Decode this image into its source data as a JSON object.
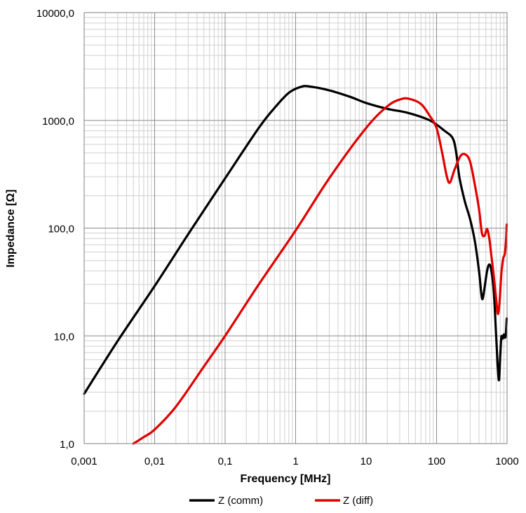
{
  "chart_data": {
    "type": "line",
    "xscale": "log",
    "yscale": "log",
    "xlabel": "Frequency  [MHz]",
    "ylabel": "Impedance [Ω]",
    "xlim": [
      0.001,
      1000
    ],
    "ylim": [
      1,
      10000
    ],
    "x_tick_labels": [
      "0,001",
      "0,01",
      "0,1",
      "1",
      "10",
      "100",
      "1000"
    ],
    "y_tick_labels": [
      "1,0",
      "10,0",
      "100,0",
      "1000,0",
      "10000,0"
    ],
    "grid": true,
    "legend_position": "bottom",
    "series": [
      {
        "name": "Z  (comm)",
        "color": "#000000",
        "points": [
          [
            0.001,
            2.9
          ],
          [
            0.003,
            9
          ],
          [
            0.01,
            29
          ],
          [
            0.03,
            88
          ],
          [
            0.1,
            290
          ],
          [
            0.3,
            850
          ],
          [
            0.5,
            1300
          ],
          [
            0.8,
            1800
          ],
          [
            1.2,
            2050
          ],
          [
            1.6,
            2060
          ],
          [
            3,
            1900
          ],
          [
            6,
            1650
          ],
          [
            10,
            1450
          ],
          [
            20,
            1280
          ],
          [
            40,
            1170
          ],
          [
            80,
            1000
          ],
          [
            130,
            800
          ],
          [
            170,
            680
          ],
          [
            190,
            500
          ],
          [
            210,
            300
          ],
          [
            250,
            180
          ],
          [
            300,
            120
          ],
          [
            350,
            75
          ],
          [
            400,
            40
          ],
          [
            430,
            25
          ],
          [
            450,
            22
          ],
          [
            480,
            28
          ],
          [
            520,
            40
          ],
          [
            560,
            46
          ],
          [
            600,
            40
          ],
          [
            650,
            25
          ],
          [
            700,
            10
          ],
          [
            740,
            5
          ],
          [
            770,
            3.9
          ],
          [
            800,
            6.5
          ],
          [
            830,
            9.8
          ],
          [
            860,
            9.4
          ],
          [
            900,
            10.3
          ],
          [
            930,
            9.6
          ],
          [
            960,
            10.3
          ],
          [
            990,
            14.5
          ]
        ]
      },
      {
        "name": "Z (diff)",
        "color": "#e00000",
        "points": [
          [
            0.005,
            1.0
          ],
          [
            0.007,
            1.15
          ],
          [
            0.01,
            1.35
          ],
          [
            0.02,
            2.2
          ],
          [
            0.05,
            5.2
          ],
          [
            0.1,
            10
          ],
          [
            0.3,
            30
          ],
          [
            1,
            95
          ],
          [
            3,
            290
          ],
          [
            10,
            850
          ],
          [
            20,
            1350
          ],
          [
            30,
            1560
          ],
          [
            40,
            1590
          ],
          [
            60,
            1420
          ],
          [
            80,
            1100
          ],
          [
            100,
            850
          ],
          [
            120,
            500
          ],
          [
            140,
            300
          ],
          [
            155,
            265
          ],
          [
            180,
            350
          ],
          [
            220,
            470
          ],
          [
            260,
            480
          ],
          [
            300,
            410
          ],
          [
            350,
            250
          ],
          [
            400,
            150
          ],
          [
            440,
            90
          ],
          [
            480,
            85
          ],
          [
            520,
            98
          ],
          [
            560,
            80
          ],
          [
            600,
            55
          ],
          [
            650,
            35
          ],
          [
            700,
            22
          ],
          [
            740,
            16
          ],
          [
            780,
            20
          ],
          [
            830,
            38
          ],
          [
            880,
            52
          ],
          [
            930,
            58
          ],
          [
            970,
            80
          ],
          [
            990,
            108
          ]
        ]
      }
    ]
  }
}
